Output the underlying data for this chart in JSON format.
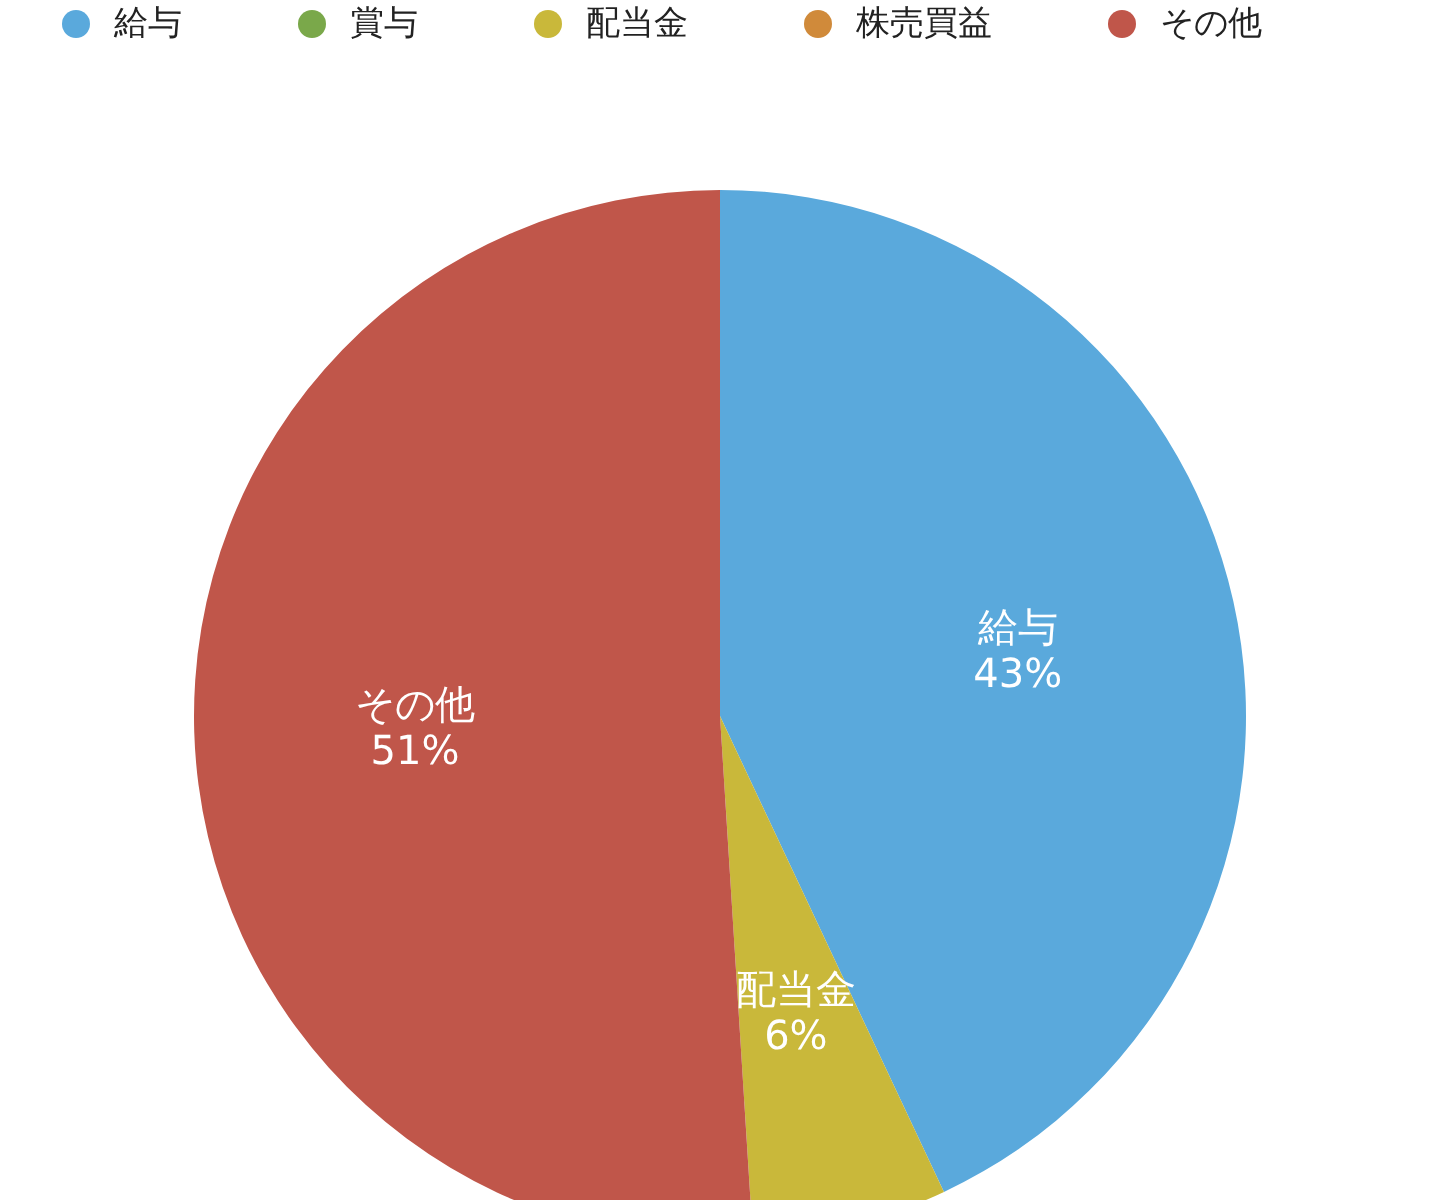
{
  "chart_data": {
    "type": "pie",
    "categories": [
      "給与",
      "賞与",
      "配当金",
      "株売買益",
      "その他"
    ],
    "values": [
      43,
      0,
      6,
      0,
      51
    ],
    "colors": [
      "#5aa9dc",
      "#7aa84a",
      "#c9b83a",
      "#d08a3a",
      "#c0564a"
    ],
    "value_labels": [
      "43%",
      null,
      "6%",
      null,
      "51%"
    ],
    "legend": "top"
  }
}
